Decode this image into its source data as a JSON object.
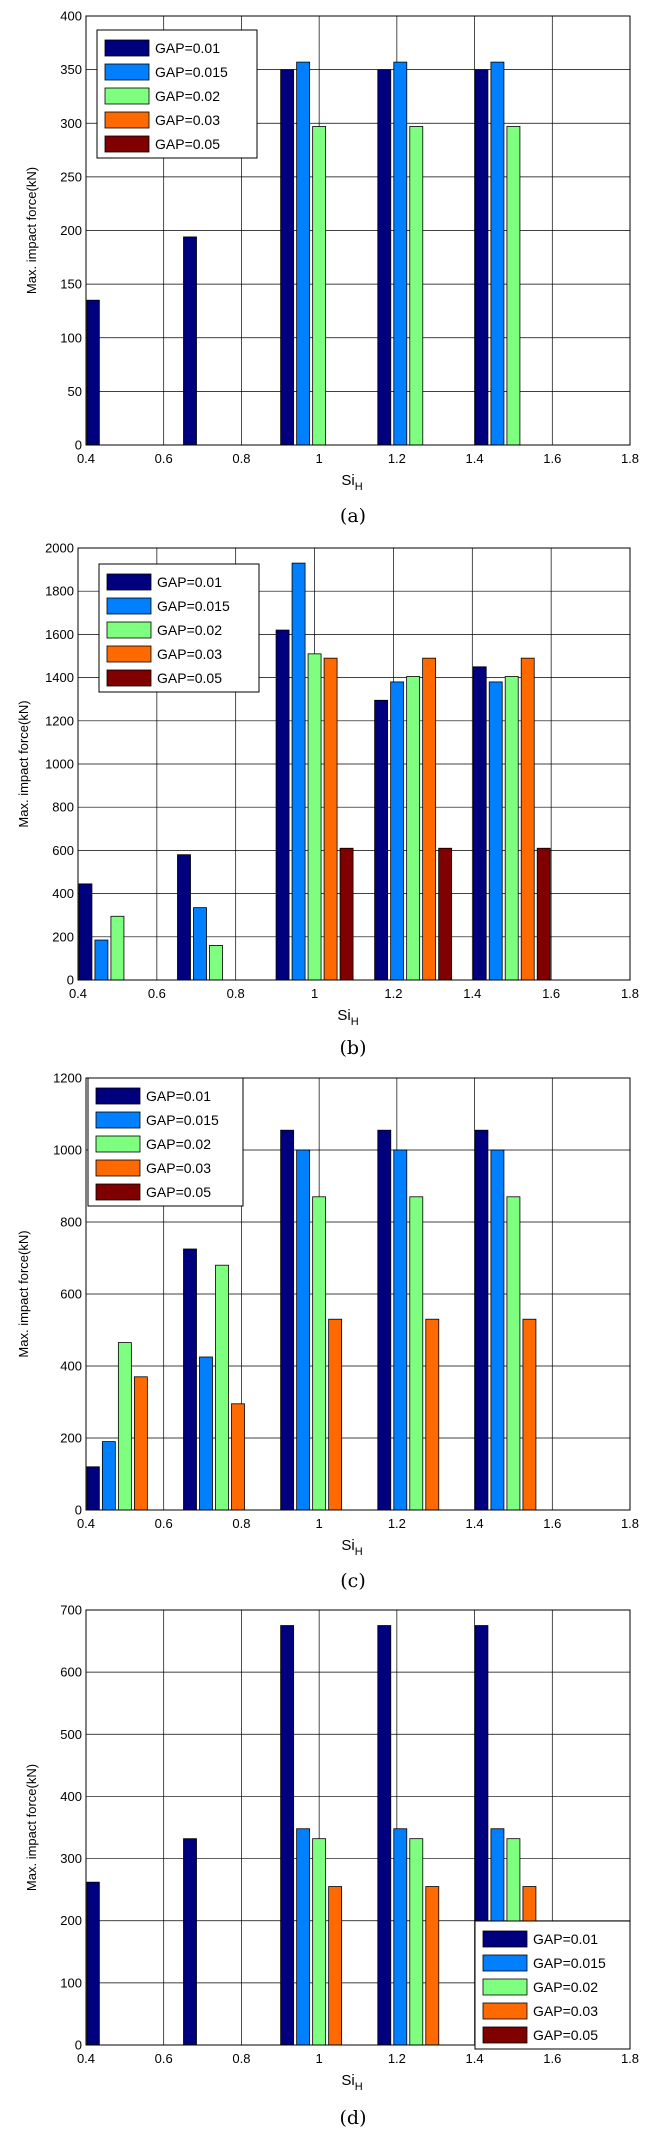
{
  "series_colors": [
    "#00007f",
    "#0080ff",
    "#7fff7f",
    "#ff6a00",
    "#800000"
  ],
  "chart_data": [
    {
      "type": "bar",
      "caption": "(a)",
      "xlabel": "Si",
      "xlabel_sub": "H",
      "ylabel": "Max. impact force(kN)",
      "xlim": [
        0.4,
        1.8
      ],
      "ylim": [
        0,
        400
      ],
      "xticks": [
        "0.4",
        "0.6",
        "0.8",
        "1",
        "1.2",
        "1.4",
        "1.6",
        "1.8"
      ],
      "yticks": [
        "0",
        "50",
        "100",
        "150",
        "200",
        "250",
        "300",
        "350",
        "400"
      ],
      "grid": true,
      "legend_position": "top-left",
      "categories": [
        0.5,
        0.75,
        1.0,
        1.25,
        1.5
      ],
      "series": [
        {
          "name": "GAP=0.01",
          "values": [
            135,
            194,
            350,
            350,
            350
          ]
        },
        {
          "name": "GAP=0.015",
          "values": [
            null,
            null,
            357,
            357,
            357
          ]
        },
        {
          "name": "GAP=0.02",
          "values": [
            null,
            null,
            297,
            297,
            297
          ]
        },
        {
          "name": "GAP=0.03",
          "values": [
            null,
            null,
            null,
            null,
            null
          ]
        },
        {
          "name": "GAP=0.05",
          "values": [
            null,
            null,
            null,
            null,
            null
          ]
        }
      ]
    },
    {
      "type": "bar",
      "caption": "(b)",
      "xlabel": "Si",
      "xlabel_sub": "H",
      "ylabel": "Max. impact force(kN)",
      "xlim": [
        0.4,
        1.8
      ],
      "ylim": [
        0,
        2000
      ],
      "xticks": [
        "0.4",
        "0.6",
        "0.8",
        "1",
        "1.2",
        "1.4",
        "1.6",
        "1.8"
      ],
      "yticks": [
        "0",
        "200",
        "400",
        "600",
        "800",
        "1000",
        "1200",
        "1400",
        "1600",
        "1800",
        "2000"
      ],
      "grid": true,
      "legend_position": "top-left",
      "categories": [
        0.5,
        0.75,
        1.0,
        1.25,
        1.5
      ],
      "series": [
        {
          "name": "GAP=0.01",
          "values": [
            445,
            580,
            1620,
            1295,
            1450
          ]
        },
        {
          "name": "GAP=0.015",
          "values": [
            185,
            335,
            1930,
            1380,
            1380
          ]
        },
        {
          "name": "GAP=0.02",
          "values": [
            295,
            160,
            1510,
            1405,
            1405
          ]
        },
        {
          "name": "GAP=0.03",
          "values": [
            null,
            null,
            1490,
            1490,
            1490
          ]
        },
        {
          "name": "GAP=0.05",
          "values": [
            null,
            null,
            610,
            610,
            610
          ]
        }
      ]
    },
    {
      "type": "bar",
      "caption": "(c)",
      "xlabel": "Si",
      "xlabel_sub": "H",
      "ylabel": "Max. impact force(kN)",
      "xlim": [
        0.4,
        1.8
      ],
      "ylim": [
        0,
        1200
      ],
      "xticks": [
        "0.4",
        "0.6",
        "0.8",
        "1",
        "1.2",
        "1.4",
        "1.6",
        "1.8"
      ],
      "yticks": [
        "0",
        "200",
        "400",
        "600",
        "800",
        "1000",
        "1200"
      ],
      "grid": true,
      "legend_position": "top-left",
      "categories": [
        0.5,
        0.75,
        1.0,
        1.25,
        1.5
      ],
      "series": [
        {
          "name": "GAP=0.01",
          "values": [
            120,
            725,
            1055,
            1055,
            1055
          ]
        },
        {
          "name": "GAP=0.015",
          "values": [
            190,
            425,
            1000,
            1000,
            1000
          ]
        },
        {
          "name": "GAP=0.02",
          "values": [
            465,
            680,
            870,
            870,
            870
          ]
        },
        {
          "name": "GAP=0.03",
          "values": [
            370,
            295,
            530,
            530,
            530
          ]
        },
        {
          "name": "GAP=0.05",
          "values": [
            null,
            null,
            null,
            null,
            null
          ]
        }
      ]
    },
    {
      "type": "bar",
      "caption": "(d)",
      "xlabel": "Si",
      "xlabel_sub": "H",
      "ylabel": "Max. impact force(kN)",
      "xlim": [
        0.4,
        1.8
      ],
      "ylim": [
        0,
        700
      ],
      "xticks": [
        "0.4",
        "0.6",
        "0.8",
        "1",
        "1.2",
        "1.4",
        "1.6",
        "1.8"
      ],
      "yticks": [
        "0",
        "100",
        "200",
        "300",
        "400",
        "500",
        "600",
        "700"
      ],
      "grid": true,
      "legend_position": "bottom-right",
      "categories": [
        0.5,
        0.75,
        1.0,
        1.25,
        1.5
      ],
      "series": [
        {
          "name": "GAP=0.01",
          "values": [
            262,
            332,
            675,
            675,
            675
          ]
        },
        {
          "name": "GAP=0.015",
          "values": [
            null,
            null,
            348,
            348,
            348
          ]
        },
        {
          "name": "GAP=0.02",
          "values": [
            null,
            null,
            332,
            332,
            332
          ]
        },
        {
          "name": "GAP=0.03",
          "values": [
            null,
            null,
            255,
            255,
            255
          ]
        },
        {
          "name": "GAP=0.05",
          "values": [
            null,
            null,
            null,
            null,
            null
          ]
        }
      ]
    }
  ]
}
